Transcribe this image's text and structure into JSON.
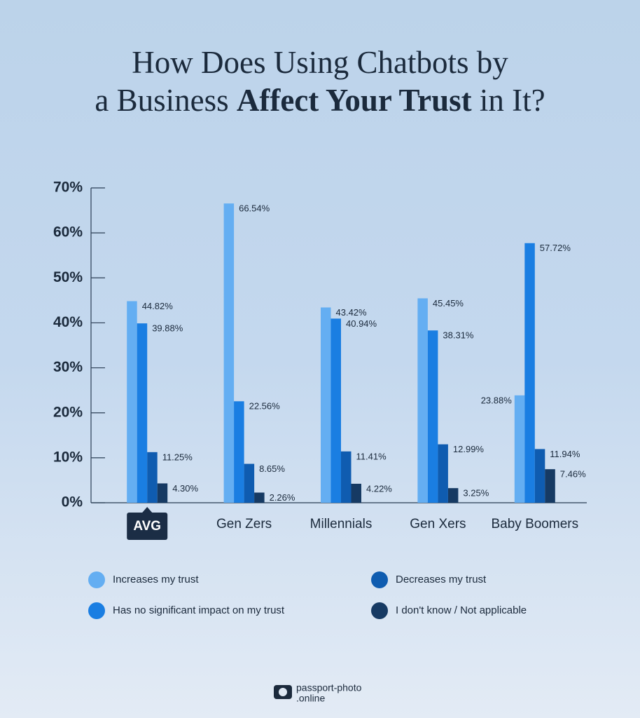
{
  "chart_data": {
    "type": "bar",
    "title": [
      "How Does Using Chatbots by",
      "a Business",
      "Affect Your Trust",
      "in It?"
    ],
    "categories": [
      "AVG",
      "Gen Zers",
      "Millennials",
      "Gen Xers",
      "Baby Boomers"
    ],
    "series": [
      {
        "name": "Increases my trust",
        "color": "#64aef2",
        "values": [
          44.82,
          66.54,
          43.42,
          45.45,
          23.88
        ],
        "value_labels": [
          "44.82%",
          "66.54%",
          "43.42%",
          "45.45%",
          "23.88%"
        ]
      },
      {
        "name": "Has no significant impact on my trust",
        "color": "#1a7ee2",
        "values": [
          39.88,
          22.56,
          40.94,
          38.31,
          57.72
        ],
        "value_labels": [
          "39.88%",
          "22.56%",
          "40.94%",
          "38.31%",
          "57.72%"
        ]
      },
      {
        "name": "Decreases my trust",
        "color": "#0f5cb0",
        "values": [
          11.25,
          8.65,
          11.41,
          12.99,
          11.94
        ],
        "value_labels": [
          "11.25%",
          "8.65%",
          "11.41%",
          "12.99%",
          "11.94%"
        ]
      },
      {
        "name": "I don't know / Not applicable",
        "color": "#163a63",
        "values": [
          4.3,
          2.26,
          4.22,
          3.25,
          7.46
        ],
        "value_labels": [
          "4.30%",
          "2.26%",
          "4.22%",
          "3.25%",
          "7.46%"
        ]
      }
    ],
    "ylim": [
      0,
      70
    ],
    "yticks": [
      {
        "value": 0,
        "label": "0%"
      },
      {
        "value": 10,
        "label": "10%"
      },
      {
        "value": 20,
        "label": "20%"
      },
      {
        "value": 30,
        "label": "30%"
      },
      {
        "value": 40,
        "label": "40%"
      },
      {
        "value": 50,
        "label": "50%"
      },
      {
        "value": 60,
        "label": "60%"
      },
      {
        "value": 70,
        "label": "70%"
      }
    ],
    "legend": "bottom",
    "logo": [
      "passport-photo",
      ".online"
    ]
  }
}
